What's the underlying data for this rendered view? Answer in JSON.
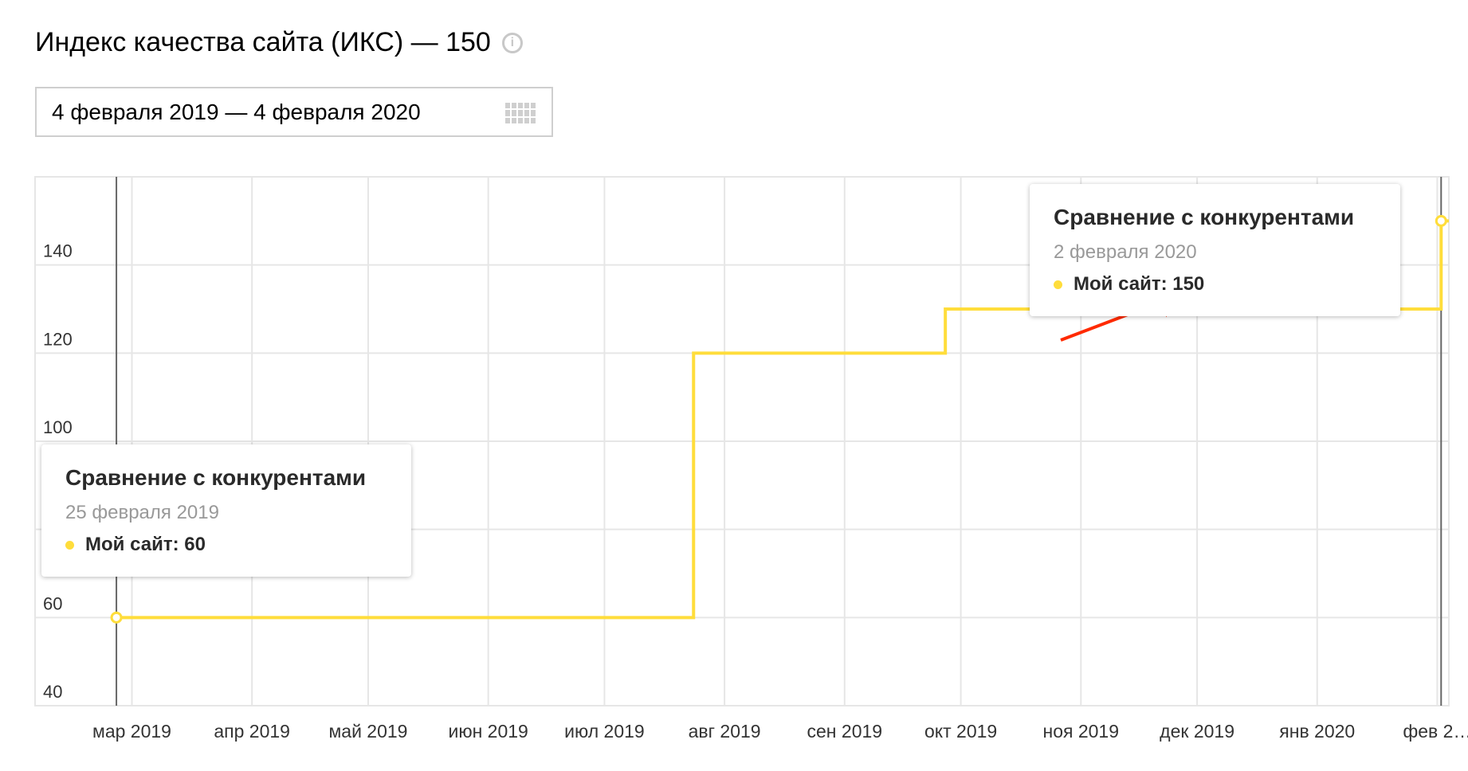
{
  "header": {
    "title": "Индекс качества сайта (ИКС) — 150",
    "info_icon": "info-icon"
  },
  "date_range": {
    "value": "4 февраля 2019 — 4 февраля 2020",
    "icon": "calendar-icon"
  },
  "tooltips": [
    {
      "title": "Сравнение с конкурентами",
      "date": "25 февраля 2019",
      "series_label": "Мой сайт: 60",
      "marker_color": "#ffdd3b"
    },
    {
      "title": "Сравнение с конкурентами",
      "date": "2 февраля 2020",
      "series_label": "Мой сайт: 150",
      "marker_color": "#ffdd3b"
    }
  ],
  "colors": {
    "series": "#ffdd3b",
    "grid": "#e6e6e6",
    "axis_text": "#333333",
    "annotation_arrow": "#ff2a00"
  },
  "chart_data": {
    "type": "line",
    "step": true,
    "title": "",
    "xlabel": "",
    "ylabel": "",
    "ylim": [
      40,
      160
    ],
    "yticks": [
      40,
      60,
      100,
      120,
      140
    ],
    "xticks": [
      "мар 2019",
      "апр 2019",
      "май 2019",
      "июн 2019",
      "июл 2019",
      "авг 2019",
      "сен 2019",
      "окт 2019",
      "ноя 2019",
      "дек 2019",
      "янв 2020",
      "фев 2…"
    ],
    "xlim": [
      "2019-02-04",
      "2020-02-04"
    ],
    "xtick_dates": [
      "2019-03-01",
      "2019-04-01",
      "2019-05-01",
      "2019-06-01",
      "2019-07-01",
      "2019-08-01",
      "2019-09-01",
      "2019-10-01",
      "2019-11-01",
      "2019-12-01",
      "2020-01-01",
      "2020-02-01"
    ],
    "grid": true,
    "crosshairs": [
      "2019-02-25",
      "2020-02-02"
    ],
    "series": [
      {
        "x": [
          "2019-02-25",
          "2019-07-24",
          "2019-07-24",
          "2019-09-27",
          "2019-09-27",
          "2020-02-02"
        ],
        "values": [
          60,
          60,
          120,
          120,
          130,
          150
        ]
      }
    ],
    "highlighted_points": [
      {
        "x": "2019-02-25",
        "y": 60
      },
      {
        "x": "2020-02-02",
        "y": 150
      }
    ]
  }
}
